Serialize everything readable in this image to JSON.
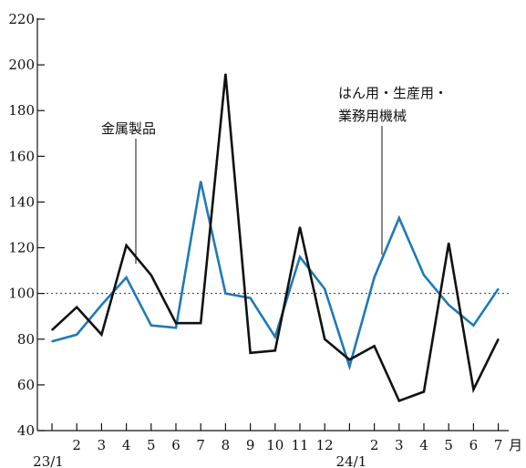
{
  "chart_data": {
    "type": "line",
    "y_ticks": [
      "40",
      "60",
      "80",
      "100",
      "120",
      "140",
      "160",
      "180",
      "200",
      "220"
    ],
    "ylim": [
      40,
      220
    ],
    "x_tick_labels": [
      "",
      "2",
      "3",
      "4",
      "5",
      "6",
      "7",
      "8",
      "9",
      "10",
      "11",
      "12",
      "",
      "2",
      "3",
      "4",
      "5",
      "6",
      "7"
    ],
    "x_unit": "月",
    "year_labels": [
      "23/1",
      "24/1"
    ],
    "reference_line": 100,
    "series": [
      {
        "name": "金属製品",
        "color": "#111111",
        "values": [
          84,
          94,
          82,
          121,
          108,
          87,
          87,
          196,
          74,
          75,
          129,
          80,
          71,
          77,
          53,
          57,
          122,
          58,
          80
        ]
      },
      {
        "name": "はん用・生産用・業務用機械",
        "color": "#1e7ab8",
        "values": [
          79,
          82,
          95,
          107,
          86,
          85,
          149,
          100,
          98,
          81,
          116,
          102,
          68,
          107,
          133,
          108,
          95,
          86,
          102
        ]
      }
    ],
    "annotations": {
      "metal": "金属製品",
      "machinery_line1": "はん用・生産用・",
      "machinery_line2": "業務用機械"
    }
  }
}
